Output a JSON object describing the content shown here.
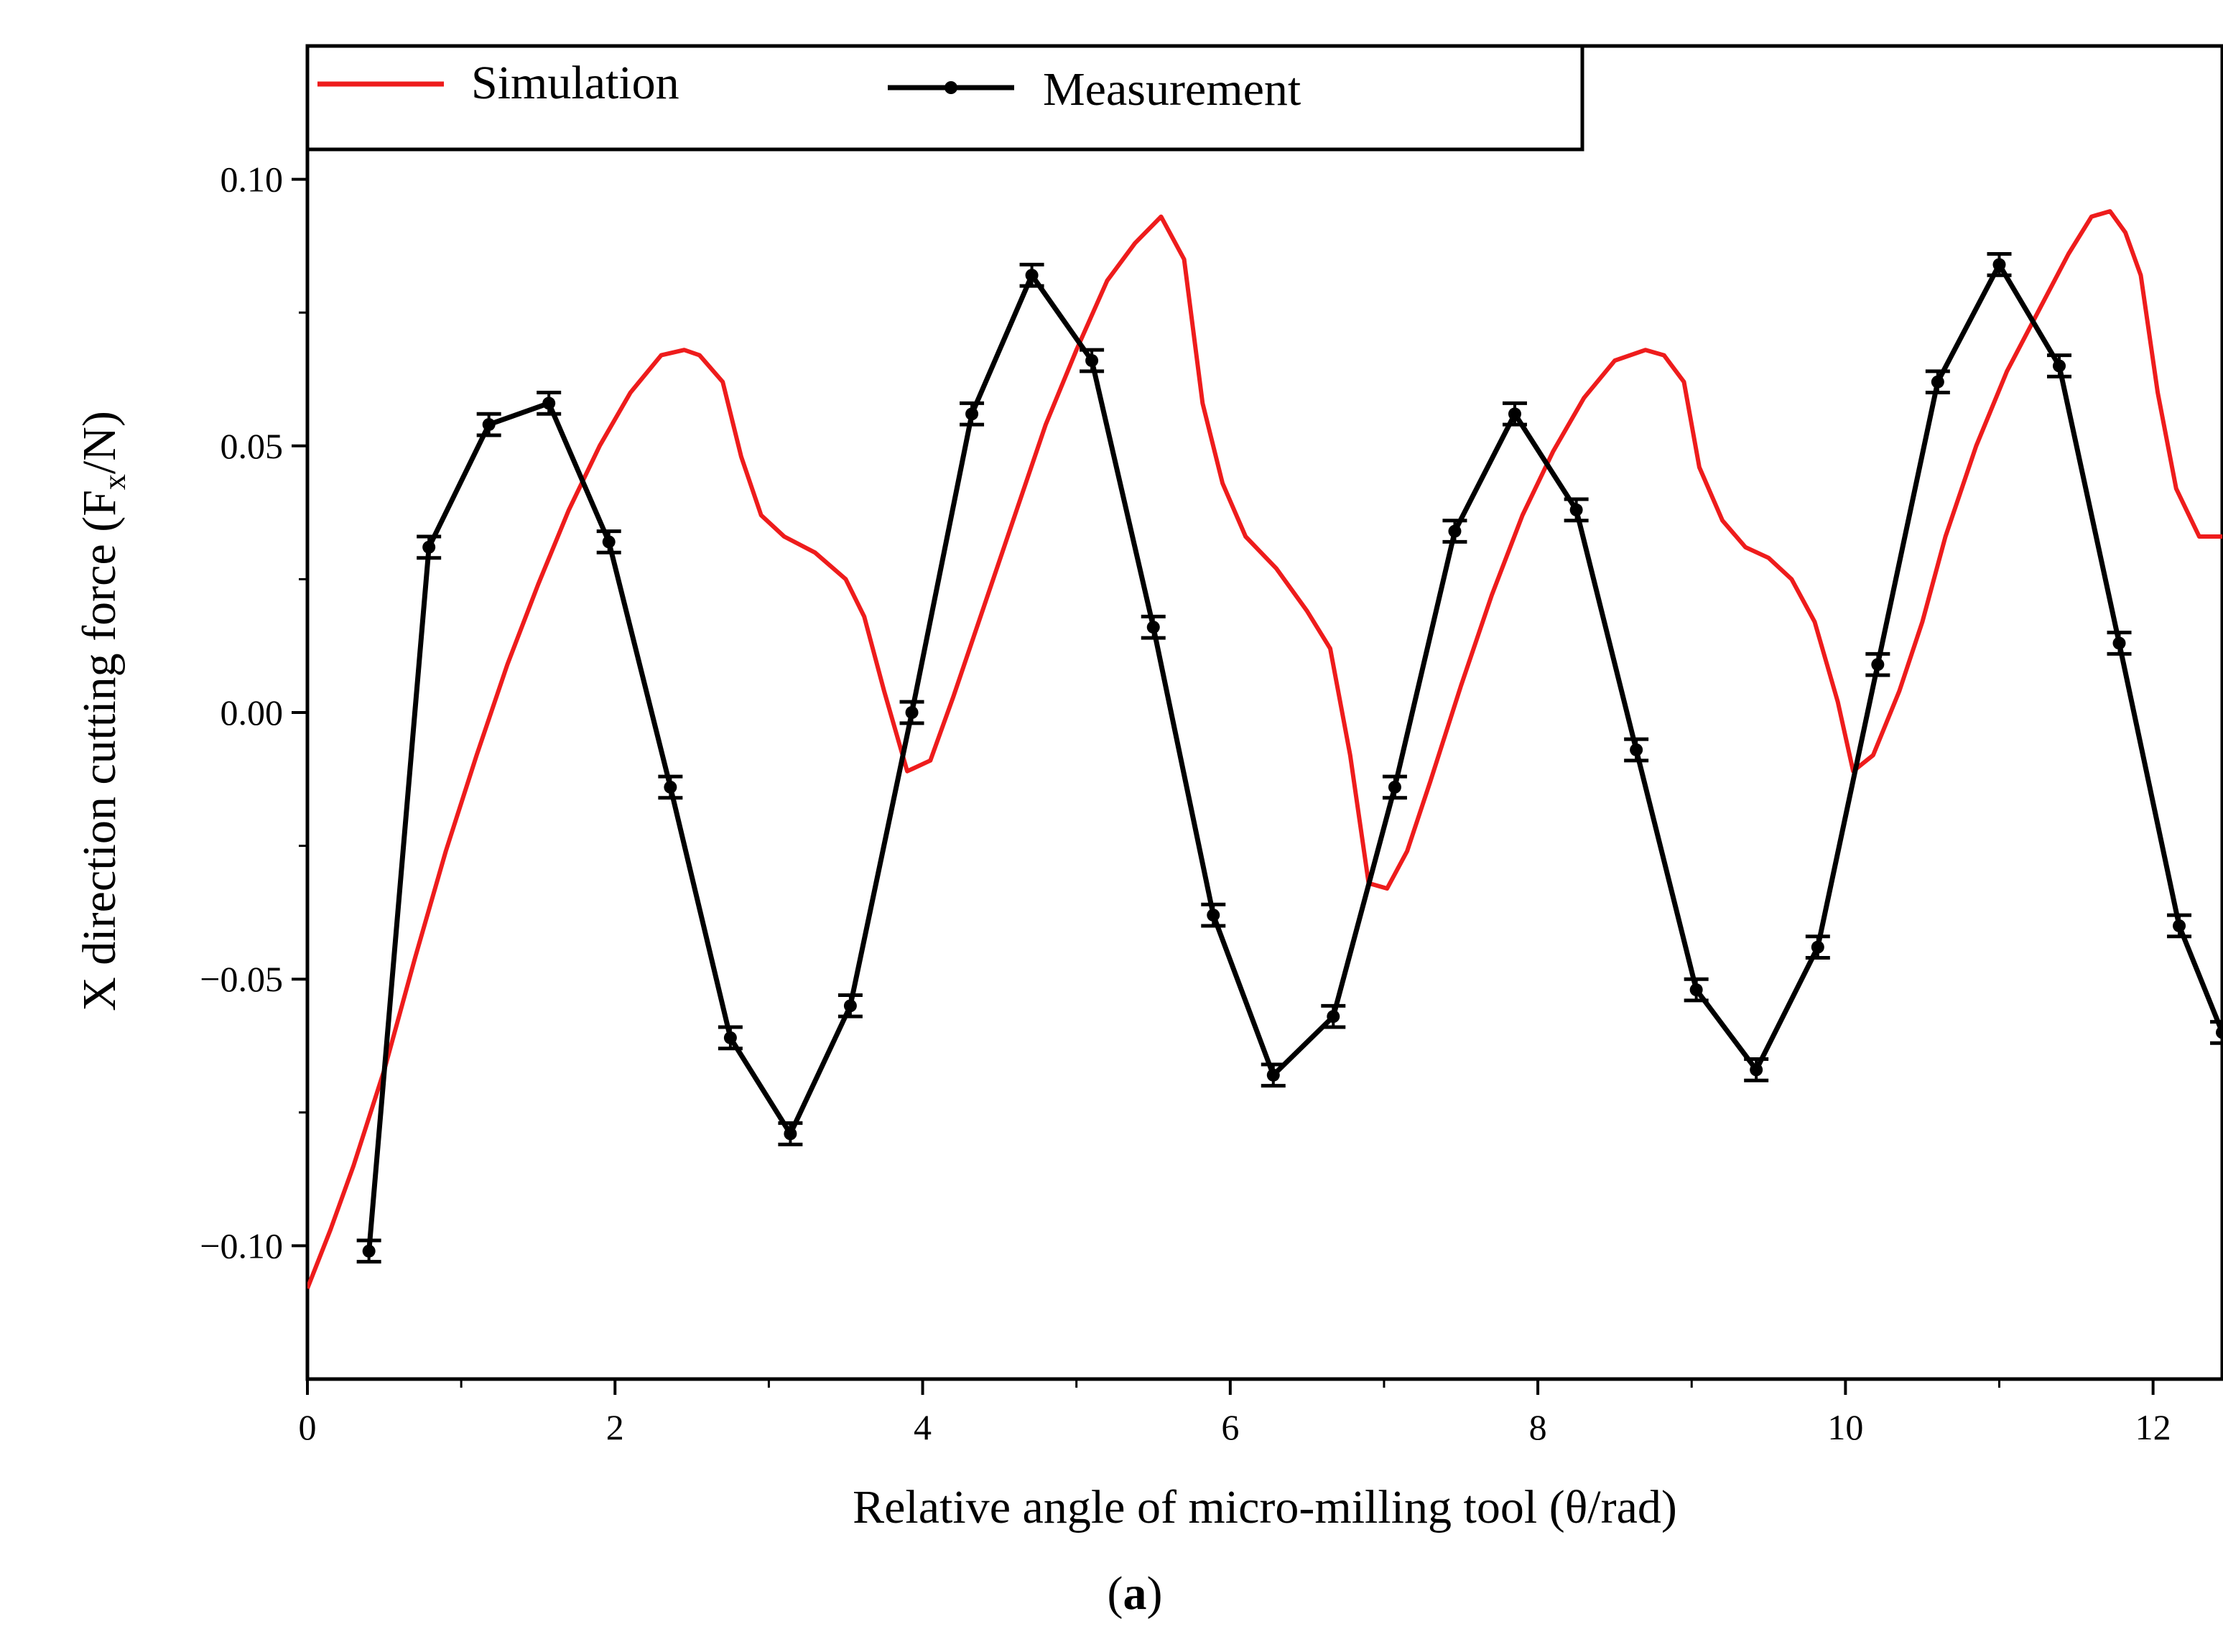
{
  "chart_data": {
    "type": "line",
    "xlabel": "Relative angle of micro-milling tool (θ/rad)",
    "ylabel": {
      "prefix": "X direction cutting force (F",
      "subscript": "x",
      "suffix": "/N)"
    },
    "caption": {
      "open": "(",
      "letter": "a",
      "close": ")"
    },
    "xlim": [
      0,
      12.45
    ],
    "ylim": [
      -0.125,
      0.125
    ],
    "x_ticks": [
      0,
      2,
      4,
      6,
      8,
      10,
      12
    ],
    "x_tick_labels": [
      "0",
      "2",
      "4",
      "6",
      "8",
      "10",
      "12"
    ],
    "y_ticks": [
      -0.1,
      -0.05,
      0.0,
      0.05,
      0.1
    ],
    "y_tick_labels": [
      "−0.10",
      "−0.05",
      "0.00",
      "0.05",
      "0.10"
    ],
    "grid": false,
    "legend_position": "top",
    "colors": {
      "simulation": "#ee1c1c",
      "measurement": "#000000"
    },
    "series": [
      {
        "name": "Simulation",
        "marker": "none",
        "x": [
          0,
          0.15,
          0.3,
          0.5,
          0.7,
          0.9,
          1.1,
          1.3,
          1.5,
          1.7,
          1.9,
          2.1,
          2.3,
          2.45,
          2.55,
          2.7,
          2.82,
          2.95,
          3.1,
          3.3,
          3.5,
          3.62,
          3.75,
          3.9,
          4.05,
          4.2,
          4.4,
          4.6,
          4.8,
          5.0,
          5.2,
          5.38,
          5.55,
          5.7,
          5.82,
          5.95,
          6.1,
          6.3,
          6.5,
          6.65,
          6.78,
          6.9,
          7.02,
          7.15,
          7.3,
          7.5,
          7.7,
          7.9,
          8.1,
          8.3,
          8.5,
          8.7,
          8.82,
          8.95,
          9.05,
          9.2,
          9.35,
          9.5,
          9.65,
          9.8,
          9.95,
          10.05,
          10.18,
          10.35,
          10.5,
          10.65,
          10.85,
          11.05,
          11.25,
          11.45,
          11.6,
          11.72,
          11.82,
          11.92,
          12.03,
          12.15,
          12.3,
          12.45
        ],
        "values": [
          -0.108,
          -0.097,
          -0.085,
          -0.067,
          -0.046,
          -0.026,
          -0.008,
          0.009,
          0.024,
          0.038,
          0.05,
          0.06,
          0.067,
          0.068,
          0.067,
          0.062,
          0.048,
          0.037,
          0.033,
          0.03,
          0.025,
          0.018,
          0.004,
          -0.011,
          -0.009,
          0.003,
          0.02,
          0.037,
          0.054,
          0.068,
          0.081,
          0.088,
          0.093,
          0.085,
          0.058,
          0.043,
          0.033,
          0.027,
          0.019,
          0.012,
          -0.008,
          -0.032,
          -0.033,
          -0.026,
          -0.013,
          0.005,
          0.022,
          0.037,
          0.049,
          0.059,
          0.066,
          0.068,
          0.067,
          0.062,
          0.046,
          0.036,
          0.031,
          0.029,
          0.025,
          0.017,
          0.002,
          -0.011,
          -0.008,
          0.004,
          0.017,
          0.033,
          0.05,
          0.064,
          0.075,
          0.086,
          0.093,
          0.094,
          0.09,
          0.082,
          0.06,
          0.042,
          0.033,
          0.033
        ]
      },
      {
        "name": "Measurement",
        "marker": "circle",
        "error_bars": true,
        "x": [
          0.4,
          0.79,
          1.18,
          1.57,
          1.96,
          2.36,
          2.75,
          3.14,
          3.53,
          3.93,
          4.32,
          4.71,
          5.1,
          5.5,
          5.89,
          6.28,
          6.67,
          7.07,
          7.46,
          7.85,
          8.25,
          8.64,
          9.03,
          9.42,
          9.82,
          10.21,
          10.6,
          11.0,
          11.39,
          11.78,
          12.17,
          12.45
        ],
        "values": [
          -0.101,
          0.031,
          0.054,
          0.058,
          0.032,
          -0.014,
          -0.061,
          -0.079,
          -0.055,
          0.0,
          0.056,
          0.082,
          0.066,
          0.016,
          -0.038,
          -0.068,
          -0.057,
          -0.014,
          0.034,
          0.056,
          0.038,
          -0.007,
          -0.052,
          -0.067,
          -0.044,
          0.009,
          0.062,
          0.084,
          0.065,
          0.013,
          -0.04,
          -0.06
        ],
        "error": [
          0.002,
          0.002,
          0.002,
          0.002,
          0.002,
          0.002,
          0.002,
          0.002,
          0.002,
          0.002,
          0.002,
          0.002,
          0.002,
          0.002,
          0.002,
          0.002,
          0.002,
          0.002,
          0.002,
          0.002,
          0.002,
          0.002,
          0.002,
          0.002,
          0.002,
          0.002,
          0.002,
          0.002,
          0.002,
          0.002,
          0.002,
          0.002
        ]
      }
    ]
  }
}
